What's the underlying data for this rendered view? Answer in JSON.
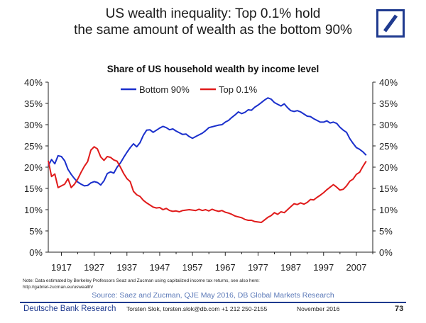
{
  "headline": {
    "line1": "US wealth inequality: Top 0.1% hold",
    "line2": "the same amount of wealth as the bottom 90%"
  },
  "logo": {
    "brand_color": "#1f3a8f"
  },
  "chart_data": {
    "type": "line",
    "title": "Share of US household wealth by income level",
    "xlabel": "",
    "ylabel": "",
    "x_ticks": [
      "1917",
      "1927",
      "1937",
      "1947",
      "1957",
      "1967",
      "1977",
      "1987",
      "1997",
      "2007"
    ],
    "y_ticks": [
      "0%",
      "5%",
      "10%",
      "15%",
      "20%",
      "25%",
      "30%",
      "35%",
      "40%"
    ],
    "xlim": [
      1913,
      2012
    ],
    "ylim": [
      0,
      40
    ],
    "legend_position": "top-center",
    "grid": false,
    "dual_y_axis": true,
    "series": [
      {
        "name": "Bottom 90%",
        "color": "#1a2fcc",
        "points": [
          [
            1913,
            20.3
          ],
          [
            1914,
            21.8
          ],
          [
            1915,
            20.8
          ],
          [
            1916,
            22.7
          ],
          [
            1917,
            22.5
          ],
          [
            1918,
            21.5
          ],
          [
            1919,
            19.5
          ],
          [
            1920,
            18.3
          ],
          [
            1921,
            17.3
          ],
          [
            1922,
            16.5
          ],
          [
            1923,
            16.0
          ],
          [
            1924,
            15.6
          ],
          [
            1925,
            15.7
          ],
          [
            1926,
            16.3
          ],
          [
            1927,
            16.6
          ],
          [
            1928,
            16.4
          ],
          [
            1929,
            15.8
          ],
          [
            1930,
            16.8
          ],
          [
            1931,
            18.5
          ],
          [
            1932,
            18.9
          ],
          [
            1933,
            18.6
          ],
          [
            1934,
            20.0
          ],
          [
            1935,
            21.0
          ],
          [
            1936,
            22.3
          ],
          [
            1937,
            23.5
          ],
          [
            1938,
            24.6
          ],
          [
            1939,
            25.5
          ],
          [
            1940,
            24.8
          ],
          [
            1941,
            25.8
          ],
          [
            1942,
            27.5
          ],
          [
            1943,
            28.7
          ],
          [
            1944,
            28.8
          ],
          [
            1945,
            28.2
          ],
          [
            1946,
            28.7
          ],
          [
            1947,
            29.2
          ],
          [
            1948,
            29.6
          ],
          [
            1949,
            29.3
          ],
          [
            1950,
            28.8
          ],
          [
            1951,
            29.0
          ],
          [
            1952,
            28.5
          ],
          [
            1953,
            28.1
          ],
          [
            1954,
            27.7
          ],
          [
            1955,
            27.8
          ],
          [
            1956,
            27.2
          ],
          [
            1957,
            26.8
          ],
          [
            1958,
            27.2
          ],
          [
            1959,
            27.6
          ],
          [
            1960,
            28.0
          ],
          [
            1961,
            28.6
          ],
          [
            1962,
            29.3
          ],
          [
            1963,
            29.5
          ],
          [
            1964,
            29.7
          ],
          [
            1965,
            29.9
          ],
          [
            1966,
            30.0
          ],
          [
            1967,
            30.6
          ],
          [
            1968,
            31.0
          ],
          [
            1969,
            31.7
          ],
          [
            1970,
            32.3
          ],
          [
            1971,
            33.0
          ],
          [
            1972,
            32.6
          ],
          [
            1973,
            32.9
          ],
          [
            1974,
            33.5
          ],
          [
            1975,
            33.4
          ],
          [
            1976,
            34.1
          ],
          [
            1977,
            34.6
          ],
          [
            1978,
            35.2
          ],
          [
            1979,
            35.8
          ],
          [
            1980,
            36.3
          ],
          [
            1981,
            36.0
          ],
          [
            1982,
            35.2
          ],
          [
            1983,
            34.8
          ],
          [
            1984,
            34.4
          ],
          [
            1985,
            34.9
          ],
          [
            1986,
            34.0
          ],
          [
            1987,
            33.3
          ],
          [
            1988,
            33.1
          ],
          [
            1989,
            33.3
          ],
          [
            1990,
            33.0
          ],
          [
            1991,
            32.5
          ],
          [
            1992,
            32.0
          ],
          [
            1993,
            31.9
          ],
          [
            1994,
            31.4
          ],
          [
            1995,
            31.0
          ],
          [
            1996,
            30.6
          ],
          [
            1997,
            30.6
          ],
          [
            1998,
            30.9
          ],
          [
            1999,
            30.4
          ],
          [
            2000,
            30.6
          ],
          [
            2001,
            30.3
          ],
          [
            2002,
            29.4
          ],
          [
            2003,
            28.7
          ],
          [
            2004,
            28.2
          ],
          [
            2005,
            26.7
          ],
          [
            2006,
            25.6
          ],
          [
            2007,
            24.6
          ],
          [
            2008,
            24.2
          ],
          [
            2009,
            23.6
          ],
          [
            2010,
            22.8
          ]
        ]
      },
      {
        "name": "Top 0.1%",
        "color": "#e01b1b",
        "points": [
          [
            1913,
            21.5
          ],
          [
            1914,
            17.8
          ],
          [
            1915,
            18.4
          ],
          [
            1916,
            15.2
          ],
          [
            1917,
            15.6
          ],
          [
            1918,
            16.0
          ],
          [
            1919,
            17.3
          ],
          [
            1920,
            15.2
          ],
          [
            1921,
            16.0
          ],
          [
            1922,
            17.2
          ],
          [
            1923,
            18.8
          ],
          [
            1924,
            20.2
          ],
          [
            1925,
            21.3
          ],
          [
            1926,
            24.0
          ],
          [
            1927,
            24.8
          ],
          [
            1928,
            24.3
          ],
          [
            1929,
            22.4
          ],
          [
            1930,
            21.6
          ],
          [
            1931,
            22.5
          ],
          [
            1932,
            22.3
          ],
          [
            1933,
            21.7
          ],
          [
            1934,
            21.4
          ],
          [
            1935,
            20.0
          ],
          [
            1936,
            18.5
          ],
          [
            1937,
            17.3
          ],
          [
            1938,
            16.6
          ],
          [
            1939,
            14.3
          ],
          [
            1940,
            13.5
          ],
          [
            1941,
            13.1
          ],
          [
            1942,
            12.2
          ],
          [
            1943,
            11.6
          ],
          [
            1944,
            11.1
          ],
          [
            1945,
            10.6
          ],
          [
            1946,
            10.4
          ],
          [
            1947,
            10.5
          ],
          [
            1948,
            10.0
          ],
          [
            1949,
            10.3
          ],
          [
            1950,
            9.8
          ],
          [
            1951,
            9.6
          ],
          [
            1952,
            9.7
          ],
          [
            1953,
            9.5
          ],
          [
            1954,
            9.8
          ],
          [
            1955,
            9.9
          ],
          [
            1956,
            10.0
          ],
          [
            1957,
            9.9
          ],
          [
            1958,
            9.8
          ],
          [
            1959,
            10.1
          ],
          [
            1960,
            9.8
          ],
          [
            1961,
            10.0
          ],
          [
            1962,
            9.7
          ],
          [
            1963,
            10.1
          ],
          [
            1964,
            9.8
          ],
          [
            1965,
            9.6
          ],
          [
            1966,
            9.8
          ],
          [
            1967,
            9.4
          ],
          [
            1968,
            9.2
          ],
          [
            1969,
            8.9
          ],
          [
            1970,
            8.5
          ],
          [
            1971,
            8.3
          ],
          [
            1972,
            8.1
          ],
          [
            1973,
            7.7
          ],
          [
            1974,
            7.5
          ],
          [
            1975,
            7.5
          ],
          [
            1976,
            7.2
          ],
          [
            1977,
            7.1
          ],
          [
            1978,
            7.0
          ],
          [
            1979,
            7.6
          ],
          [
            1980,
            8.2
          ],
          [
            1981,
            8.6
          ],
          [
            1982,
            9.3
          ],
          [
            1983,
            8.9
          ],
          [
            1984,
            9.5
          ],
          [
            1985,
            9.3
          ],
          [
            1986,
            10.0
          ],
          [
            1987,
            10.7
          ],
          [
            1988,
            11.4
          ],
          [
            1989,
            11.2
          ],
          [
            1990,
            11.6
          ],
          [
            1991,
            11.3
          ],
          [
            1992,
            11.7
          ],
          [
            1993,
            12.4
          ],
          [
            1994,
            12.3
          ],
          [
            1995,
            12.9
          ],
          [
            1996,
            13.4
          ],
          [
            1997,
            14.0
          ],
          [
            1998,
            14.7
          ],
          [
            1999,
            15.3
          ],
          [
            2000,
            15.9
          ],
          [
            2001,
            15.3
          ],
          [
            2002,
            14.6
          ],
          [
            2003,
            14.8
          ],
          [
            2004,
            15.6
          ],
          [
            2005,
            16.7
          ],
          [
            2006,
            17.2
          ],
          [
            2007,
            18.3
          ],
          [
            2008,
            18.8
          ],
          [
            2009,
            20.2
          ],
          [
            2010,
            21.4
          ]
        ]
      }
    ]
  },
  "note": {
    "line1": "Note: Data estimated by Berkeley Professors Seaz and Zucman using capitalized income tax returns, see also here:",
    "line2": "http://gabriel-zucman.eu/uswealth/"
  },
  "source": "Source: Saez and Zucman, QJE May 2016, DB Global Markets Research",
  "footer": {
    "brand": "Deutsche Bank Research",
    "author": "Torsten Slok, torsten.slok@db.com  +1 212 250-2155",
    "date": "November 2016",
    "page": "73"
  }
}
